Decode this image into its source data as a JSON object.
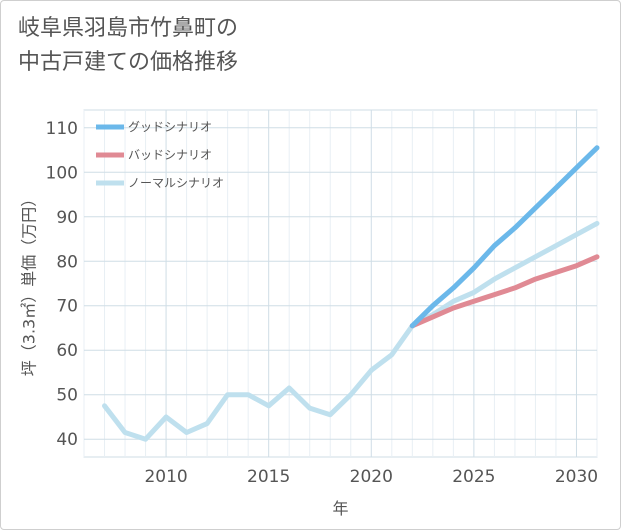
{
  "page": {
    "title_line1": "岐阜県羽島市竹鼻町の",
    "title_line2": "中古戸建ての価格推移"
  },
  "chart_data": {
    "type": "line",
    "title": "岐阜県羽島市竹鼻町の中古戸建ての価格推移",
    "xlabel": "年",
    "ylabel": "坪（3.3㎡）単価（万円）",
    "xlim": [
      2006,
      2031
    ],
    "ylim": [
      36,
      114
    ],
    "xticks": [
      2010,
      2015,
      2020,
      2025,
      2030
    ],
    "yticks": [
      40,
      50,
      60,
      70,
      80,
      90,
      100,
      110
    ],
    "grid": true,
    "legend_position": "top-left",
    "series": [
      {
        "name": "グッドシナリオ",
        "color": "#6bb8ea",
        "x": [
          2022,
          2023,
          2024,
          2025,
          2026,
          2027,
          2028,
          2029,
          2030,
          2031
        ],
        "values": [
          65.5,
          70.0,
          74.0,
          78.5,
          83.5,
          87.5,
          92.0,
          96.5,
          101.0,
          105.5
        ]
      },
      {
        "name": "バッドシナリオ",
        "color": "#e08a94",
        "x": [
          2022,
          2023,
          2024,
          2025,
          2026,
          2027,
          2028,
          2029,
          2030,
          2031
        ],
        "values": [
          65.5,
          67.5,
          69.5,
          71.0,
          72.5,
          74.0,
          76.0,
          77.5,
          79.0,
          81.0
        ]
      },
      {
        "name": "ノーマルシナリオ",
        "color": "#bfe0ee",
        "x": [
          2007,
          2008,
          2009,
          2010,
          2011,
          2012,
          2013,
          2014,
          2015,
          2016,
          2017,
          2018,
          2019,
          2020,
          2021,
          2022,
          2023,
          2024,
          2025,
          2026,
          2027,
          2028,
          2029,
          2030,
          2031
        ],
        "values": [
          47.5,
          41.5,
          40.0,
          45.0,
          41.5,
          43.5,
          50.0,
          50.0,
          47.5,
          51.5,
          47.0,
          45.5,
          50.0,
          55.5,
          59.0,
          65.5,
          68.0,
          71.0,
          73.0,
          76.0,
          78.5,
          81.0,
          83.5,
          86.0,
          88.5
        ]
      }
    ]
  }
}
